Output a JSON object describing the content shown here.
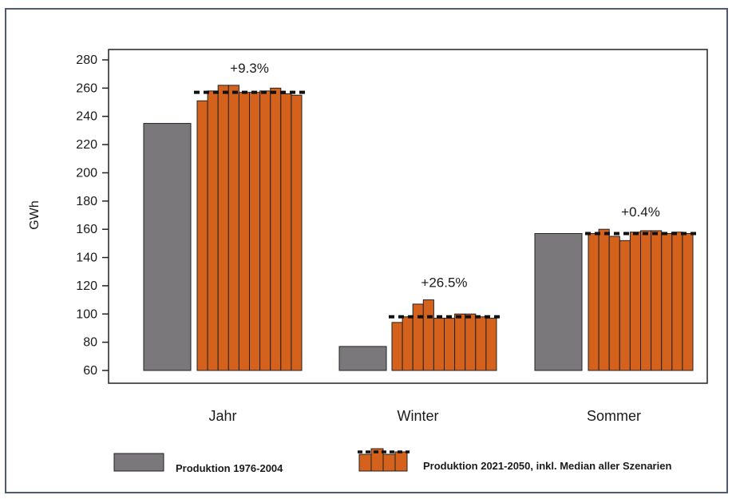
{
  "chart_data": {
    "type": "bar",
    "title": "",
    "xlabel": "",
    "ylabel": "GWh",
    "ylim": [
      60,
      280
    ],
    "yticks": [
      60,
      80,
      100,
      120,
      140,
      160,
      180,
      200,
      220,
      240,
      260,
      280
    ],
    "grid": false,
    "legend_placement": "bottom",
    "categories": [
      "Jahr",
      "Winter",
      "Sommer"
    ],
    "series": [
      {
        "name": "Produktion 1976-2004",
        "color": "#7b787b",
        "values": [
          235,
          77,
          157
        ]
      },
      {
        "name": "Produktion 2021-2050, inkl. Median aller Szenarien",
        "color": "#d4621c",
        "values": [
          [
            251,
            258,
            262,
            262,
            257,
            257,
            258,
            260,
            256,
            255
          ],
          [
            94,
            98,
            107,
            110,
            97,
            97,
            100,
            100,
            98,
            97
          ],
          [
            157,
            160,
            155,
            152,
            158,
            159,
            159,
            157,
            158,
            157
          ]
        ],
        "median": [
          257,
          98,
          157
        ]
      }
    ],
    "annotations": [
      "+9.3%",
      "+26.5%",
      "+0.4%"
    ]
  }
}
